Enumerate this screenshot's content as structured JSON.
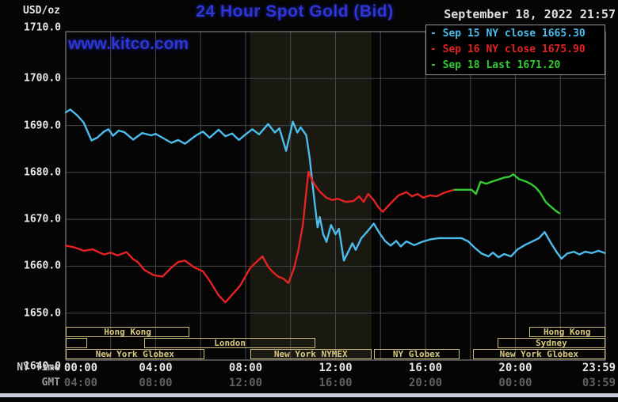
{
  "header": {
    "unit_label": "USD/oz",
    "title": "24 Hour Spot Gold (Bid)",
    "datetime": "September 18, 2022 21:57",
    "watermark": "www.kitco.com"
  },
  "colors": {
    "bg": "#050505",
    "title_blue": "#2e36d8",
    "date_text": "#e0e0e0",
    "axis_text": "#e6e6e6",
    "gmt_text": "#606060",
    "grid": "#474747",
    "plot_border": "#7d7d7d",
    "band": "#191911",
    "legend_border": "#979797",
    "session_border": "#c9b97a",
    "session_text": "#d9c87e",
    "bottom_bar": "#c7cdd9",
    "cyan": "#4cbcec",
    "red": "#e42222",
    "green": "#33cc33"
  },
  "legend": {
    "rows": [
      {
        "text": "- Sep 15 NY close 1665.30",
        "color_key": "cyan"
      },
      {
        "text": "- Sep 16 NY close 1675.90",
        "color_key": "red"
      },
      {
        "text": "- Sep 18 Last 1671.20",
        "color_key": "green"
      }
    ]
  },
  "chart_data": {
    "type": "line",
    "title": "24 Hour Spot Gold (Bid)",
    "ylabel": "USD/oz",
    "ylim": [
      1640,
      1710
    ],
    "xlim_hours": [
      0,
      24
    ],
    "y_ticks": [
      1710,
      1700,
      1690,
      1680,
      1670,
      1660,
      1650,
      1640
    ],
    "grid_step_hours": 2,
    "x_tick_hours": [
      0,
      4,
      8,
      12,
      16,
      20,
      23.983
    ],
    "x_rows": [
      {
        "name": "NY Time",
        "ticks": [
          "00:00",
          "04:00",
          "08:00",
          "12:00",
          "16:00",
          "20:00",
          "23:59"
        ]
      },
      {
        "name": "GMT",
        "ticks": [
          "04:00",
          "08:00",
          "12:00",
          "16:00",
          "20:00",
          "00:00",
          "03:59"
        ]
      }
    ],
    "nymex_band_hours": [
      8.2,
      13.6
    ],
    "series": [
      {
        "name": "Sep 15 NY close",
        "close": 1665.3,
        "color_key": "cyan",
        "points": [
          [
            0,
            1692.8
          ],
          [
            0.2,
            1693.4
          ],
          [
            0.5,
            1692.2
          ],
          [
            0.8,
            1690.6
          ],
          [
            1.0,
            1688.4
          ],
          [
            1.15,
            1686.8
          ],
          [
            1.4,
            1687.4
          ],
          [
            1.7,
            1688.7
          ],
          [
            1.9,
            1689.2
          ],
          [
            2.1,
            1687.8
          ],
          [
            2.35,
            1688.9
          ],
          [
            2.6,
            1688.6
          ],
          [
            3.0,
            1687.0
          ],
          [
            3.4,
            1688.4
          ],
          [
            3.8,
            1687.9
          ],
          [
            4.0,
            1688.2
          ],
          [
            4.3,
            1687.4
          ],
          [
            4.7,
            1686.3
          ],
          [
            5.0,
            1686.9
          ],
          [
            5.3,
            1686.1
          ],
          [
            5.8,
            1687.9
          ],
          [
            6.1,
            1688.7
          ],
          [
            6.4,
            1687.4
          ],
          [
            6.8,
            1689.1
          ],
          [
            7.1,
            1687.7
          ],
          [
            7.4,
            1688.3
          ],
          [
            7.7,
            1686.9
          ],
          [
            8.0,
            1688.1
          ],
          [
            8.3,
            1689.2
          ],
          [
            8.6,
            1688.1
          ],
          [
            9.0,
            1690.3
          ],
          [
            9.3,
            1688.5
          ],
          [
            9.5,
            1689.4
          ],
          [
            9.8,
            1684.6
          ],
          [
            10.1,
            1690.8
          ],
          [
            10.3,
            1688.5
          ],
          [
            10.45,
            1689.6
          ],
          [
            10.7,
            1687.9
          ],
          [
            10.85,
            1683.0
          ],
          [
            11.0,
            1676.5
          ],
          [
            11.2,
            1668.3
          ],
          [
            11.3,
            1670.5
          ],
          [
            11.45,
            1666.8
          ],
          [
            11.6,
            1665.2
          ],
          [
            11.8,
            1668.8
          ],
          [
            12.0,
            1666.8
          ],
          [
            12.15,
            1668.0
          ],
          [
            12.37,
            1661.2
          ],
          [
            12.6,
            1663.4
          ],
          [
            12.75,
            1664.9
          ],
          [
            12.9,
            1663.5
          ],
          [
            13.15,
            1666.0
          ],
          [
            13.45,
            1667.6
          ],
          [
            13.7,
            1669.1
          ],
          [
            13.95,
            1667.1
          ],
          [
            14.2,
            1665.4
          ],
          [
            14.45,
            1664.4
          ],
          [
            14.7,
            1665.4
          ],
          [
            14.9,
            1664.2
          ],
          [
            15.15,
            1665.3
          ],
          [
            15.5,
            1664.5
          ],
          [
            15.85,
            1665.2
          ],
          [
            16.2,
            1665.7
          ],
          [
            16.6,
            1666.0
          ],
          [
            17.1,
            1666.0
          ],
          [
            17.6,
            1666.0
          ],
          [
            17.9,
            1665.3
          ],
          [
            18.2,
            1663.9
          ],
          [
            18.5,
            1662.7
          ],
          [
            18.8,
            1662.1
          ],
          [
            19.0,
            1662.9
          ],
          [
            19.25,
            1661.9
          ],
          [
            19.5,
            1662.6
          ],
          [
            19.8,
            1662.1
          ],
          [
            20.1,
            1663.6
          ],
          [
            20.45,
            1664.6
          ],
          [
            20.8,
            1665.4
          ],
          [
            21.05,
            1666.0
          ],
          [
            21.3,
            1667.3
          ],
          [
            21.6,
            1664.8
          ],
          [
            21.85,
            1662.9
          ],
          [
            22.05,
            1661.6
          ],
          [
            22.3,
            1662.7
          ],
          [
            22.6,
            1663.1
          ],
          [
            22.85,
            1662.5
          ],
          [
            23.1,
            1663.1
          ],
          [
            23.4,
            1662.8
          ],
          [
            23.7,
            1663.3
          ],
          [
            23.983,
            1662.8
          ]
        ]
      },
      {
        "name": "Sep 16 NY close",
        "close": 1675.9,
        "color_key": "red",
        "points": [
          [
            0,
            1664.4
          ],
          [
            0.4,
            1664.0
          ],
          [
            0.8,
            1663.3
          ],
          [
            1.2,
            1663.6
          ],
          [
            1.7,
            1662.5
          ],
          [
            2.0,
            1662.9
          ],
          [
            2.3,
            1662.3
          ],
          [
            2.7,
            1663.0
          ],
          [
            3.0,
            1661.5
          ],
          [
            3.2,
            1660.9
          ],
          [
            3.5,
            1659.2
          ],
          [
            3.9,
            1658.1
          ],
          [
            4.3,
            1657.8
          ],
          [
            4.7,
            1659.7
          ],
          [
            5.0,
            1660.9
          ],
          [
            5.3,
            1661.2
          ],
          [
            5.7,
            1659.8
          ],
          [
            6.1,
            1658.9
          ],
          [
            6.4,
            1656.9
          ],
          [
            6.8,
            1653.8
          ],
          [
            7.1,
            1652.3
          ],
          [
            7.45,
            1654.2
          ],
          [
            7.75,
            1655.8
          ],
          [
            8.2,
            1659.6
          ],
          [
            8.5,
            1661.0
          ],
          [
            8.75,
            1662.1
          ],
          [
            9.0,
            1659.9
          ],
          [
            9.2,
            1658.8
          ],
          [
            9.45,
            1657.8
          ],
          [
            9.7,
            1657.3
          ],
          [
            9.9,
            1656.4
          ],
          [
            10.15,
            1659.5
          ],
          [
            10.35,
            1663.5
          ],
          [
            10.55,
            1669.0
          ],
          [
            10.68,
            1675.0
          ],
          [
            10.8,
            1680.2
          ],
          [
            10.95,
            1678.4
          ],
          [
            11.1,
            1677.2
          ],
          [
            11.3,
            1675.9
          ],
          [
            11.6,
            1674.6
          ],
          [
            11.85,
            1674.1
          ],
          [
            12.1,
            1674.4
          ],
          [
            12.45,
            1673.7
          ],
          [
            12.8,
            1673.9
          ],
          [
            13.05,
            1674.9
          ],
          [
            13.25,
            1673.7
          ],
          [
            13.45,
            1675.4
          ],
          [
            13.7,
            1674.1
          ],
          [
            13.9,
            1672.6
          ],
          [
            14.1,
            1671.6
          ],
          [
            14.45,
            1673.4
          ],
          [
            14.8,
            1675.1
          ],
          [
            15.15,
            1675.8
          ],
          [
            15.4,
            1674.9
          ],
          [
            15.65,
            1675.4
          ],
          [
            15.9,
            1674.6
          ],
          [
            16.2,
            1675.1
          ],
          [
            16.5,
            1674.9
          ],
          [
            16.8,
            1675.6
          ],
          [
            17.05,
            1676.0
          ],
          [
            17.3,
            1676.3
          ]
        ]
      },
      {
        "name": "Sep 18 Last",
        "last": 1671.2,
        "color_key": "green",
        "points": [
          [
            17.3,
            1676.3
          ],
          [
            17.7,
            1676.3
          ],
          [
            18.05,
            1676.3
          ],
          [
            18.25,
            1675.4
          ],
          [
            18.45,
            1678.0
          ],
          [
            18.7,
            1677.6
          ],
          [
            19.0,
            1678.1
          ],
          [
            19.2,
            1678.4
          ],
          [
            19.5,
            1678.9
          ],
          [
            19.75,
            1679.1
          ],
          [
            19.9,
            1679.6
          ],
          [
            20.15,
            1678.6
          ],
          [
            20.5,
            1678.0
          ],
          [
            20.7,
            1677.5
          ],
          [
            20.9,
            1676.8
          ],
          [
            21.1,
            1675.7
          ],
          [
            21.35,
            1673.7
          ],
          [
            21.6,
            1672.6
          ],
          [
            21.8,
            1671.8
          ],
          [
            21.95,
            1671.3
          ]
        ]
      }
    ],
    "sessions": [
      {
        "row": 0,
        "label": "Hong Kong",
        "start": 0,
        "end": 5.5
      },
      {
        "row": 0,
        "label": "Hong Kong",
        "start": 20.6,
        "end": 24
      },
      {
        "row": 1,
        "label": "",
        "start": 0,
        "end": 0.95
      },
      {
        "row": 1,
        "label": "London",
        "start": 3.5,
        "end": 11.1
      },
      {
        "row": 1,
        "label": "Sydney",
        "start": 19.2,
        "end": 24
      },
      {
        "row": 2,
        "label": "New York Globex",
        "start": 0,
        "end": 6.15
      },
      {
        "row": 2,
        "label": "New York NYMEX",
        "start": 8.2,
        "end": 13.6
      },
      {
        "row": 2,
        "label": "NY Globex",
        "start": 13.7,
        "end": 17.5
      },
      {
        "row": 2,
        "label": "New York Globex",
        "start": 18.1,
        "end": 24
      }
    ]
  }
}
